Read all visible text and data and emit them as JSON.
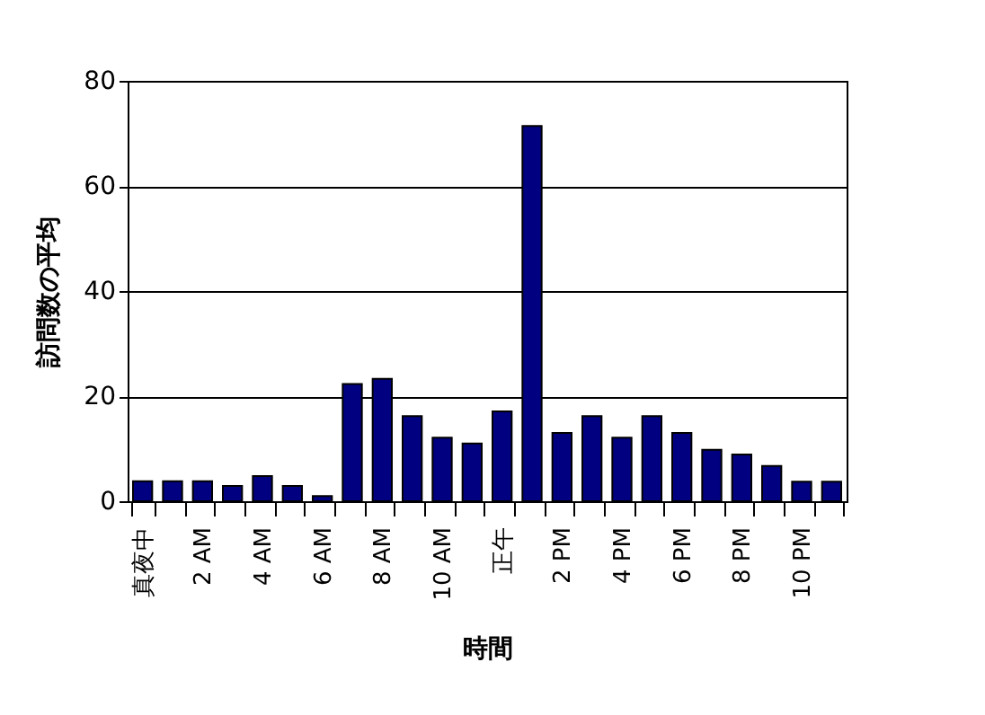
{
  "chart_data": {
    "type": "bar",
    "xlabel": "時間",
    "ylabel": "訪問数の平均",
    "categories": [
      "真夜中",
      null,
      "2 AM",
      null,
      "4 AM",
      null,
      "6 AM",
      null,
      "8 AM",
      null,
      "10 AM",
      null,
      "正午",
      null,
      "2 PM",
      null,
      "4 PM",
      null,
      "6 PM",
      null,
      "8 PM",
      null,
      "10 PM",
      null
    ],
    "values": [
      3.8,
      3.8,
      3.8,
      2.9,
      4.8,
      2.9,
      1.0,
      22.3,
      23.3,
      16.2,
      12.1,
      11.0,
      17.1,
      71.4,
      13.0,
      16.2,
      12.1,
      16.2,
      13.0,
      9.8,
      8.9,
      6.7,
      3.7,
      3.7
    ],
    "color": "#000080",
    "ylim": [
      0,
      80
    ],
    "yticks": [
      0,
      20,
      40,
      60,
      80
    ],
    "grid": "y"
  }
}
